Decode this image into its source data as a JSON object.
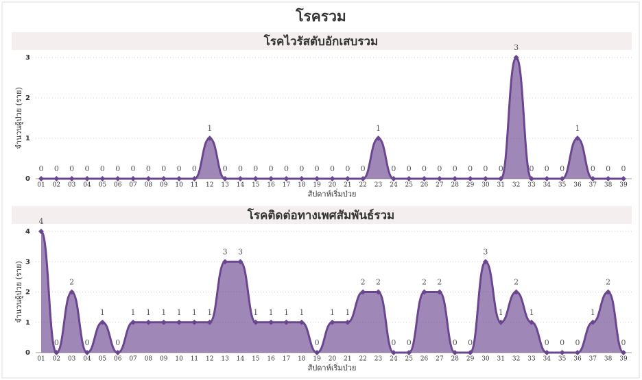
{
  "title": "โรครวม",
  "chart_data": [
    {
      "type": "area",
      "title": "โรคไวรัสตับอักเสบรวม",
      "x_label": "สัปดาห์เริ่มป่วย",
      "y_label": "จำนวนผู้ป่วย (ราย)",
      "categories": [
        "01",
        "02",
        "03",
        "04",
        "05",
        "06",
        "07",
        "08",
        "09",
        "10",
        "11",
        "12",
        "13",
        "14",
        "15",
        "16",
        "17",
        "18",
        "19",
        "20",
        "21",
        "22",
        "23",
        "24",
        "25",
        "26",
        "27",
        "28",
        "29",
        "30",
        "31",
        "32",
        "33",
        "34",
        "35",
        "36",
        "37",
        "38",
        "39"
      ],
      "values": [
        0,
        0,
        0,
        0,
        0,
        0,
        0,
        0,
        0,
        0,
        0,
        1,
        0,
        0,
        0,
        0,
        0,
        0,
        0,
        0,
        0,
        0,
        1,
        0,
        0,
        0,
        0,
        0,
        0,
        0,
        0,
        3,
        0,
        0,
        0,
        1,
        0,
        0,
        0
      ],
      "color": "#6b4690",
      "ylim": [
        0,
        3
      ],
      "yticks": [
        0,
        1,
        2,
        3
      ],
      "grid": true
    },
    {
      "type": "area",
      "title": "โรคติดต่อทางเพศสัมพันธ์รวม",
      "x_label": "สัปดาห์เริ่มป่วย",
      "y_label": "จำนวนผู้ป่วย (ราย)",
      "categories": [
        "01",
        "02",
        "03",
        "04",
        "05",
        "06",
        "07",
        "08",
        "09",
        "10",
        "11",
        "12",
        "13",
        "14",
        "15",
        "16",
        "17",
        "18",
        "19",
        "20",
        "21",
        "22",
        "23",
        "24",
        "25",
        "26",
        "27",
        "28",
        "29",
        "30",
        "31",
        "32",
        "33",
        "34",
        "35",
        "36",
        "37",
        "38",
        "39"
      ],
      "values": [
        4,
        0,
        2,
        0,
        1,
        0,
        1,
        1,
        1,
        1,
        1,
        1,
        3,
        3,
        1,
        1,
        1,
        1,
        0,
        1,
        1,
        2,
        2,
        0,
        0,
        2,
        2,
        0,
        0,
        3,
        1,
        2,
        1,
        0,
        0,
        0,
        1,
        2,
        0
      ],
      "color": "#6b4690",
      "ylim": [
        0,
        4
      ],
      "yticks": [
        0,
        1,
        2,
        3,
        4
      ],
      "grid": true
    }
  ]
}
